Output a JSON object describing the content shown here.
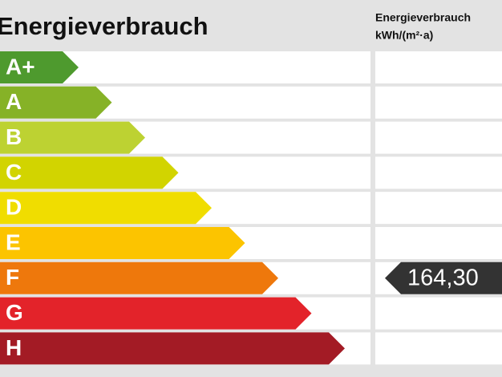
{
  "header": {
    "title": "Energieverbrauch",
    "column_title": "Energieverbrauch",
    "column_unit": "kWh/(m²·a)"
  },
  "rows": [
    {
      "label": "A+",
      "color": "#4e9a2e"
    },
    {
      "label": "A",
      "color": "#86b227"
    },
    {
      "label": "B",
      "color": "#bdd232"
    },
    {
      "label": "C",
      "color": "#d2d400"
    },
    {
      "label": "D",
      "color": "#f0dd00"
    },
    {
      "label": "E",
      "color": "#fcc400"
    },
    {
      "label": "F",
      "color": "#ee780c",
      "value": "164,30"
    },
    {
      "label": "G",
      "color": "#e3232a"
    },
    {
      "label": "H",
      "color": "#a31b25"
    }
  ]
}
